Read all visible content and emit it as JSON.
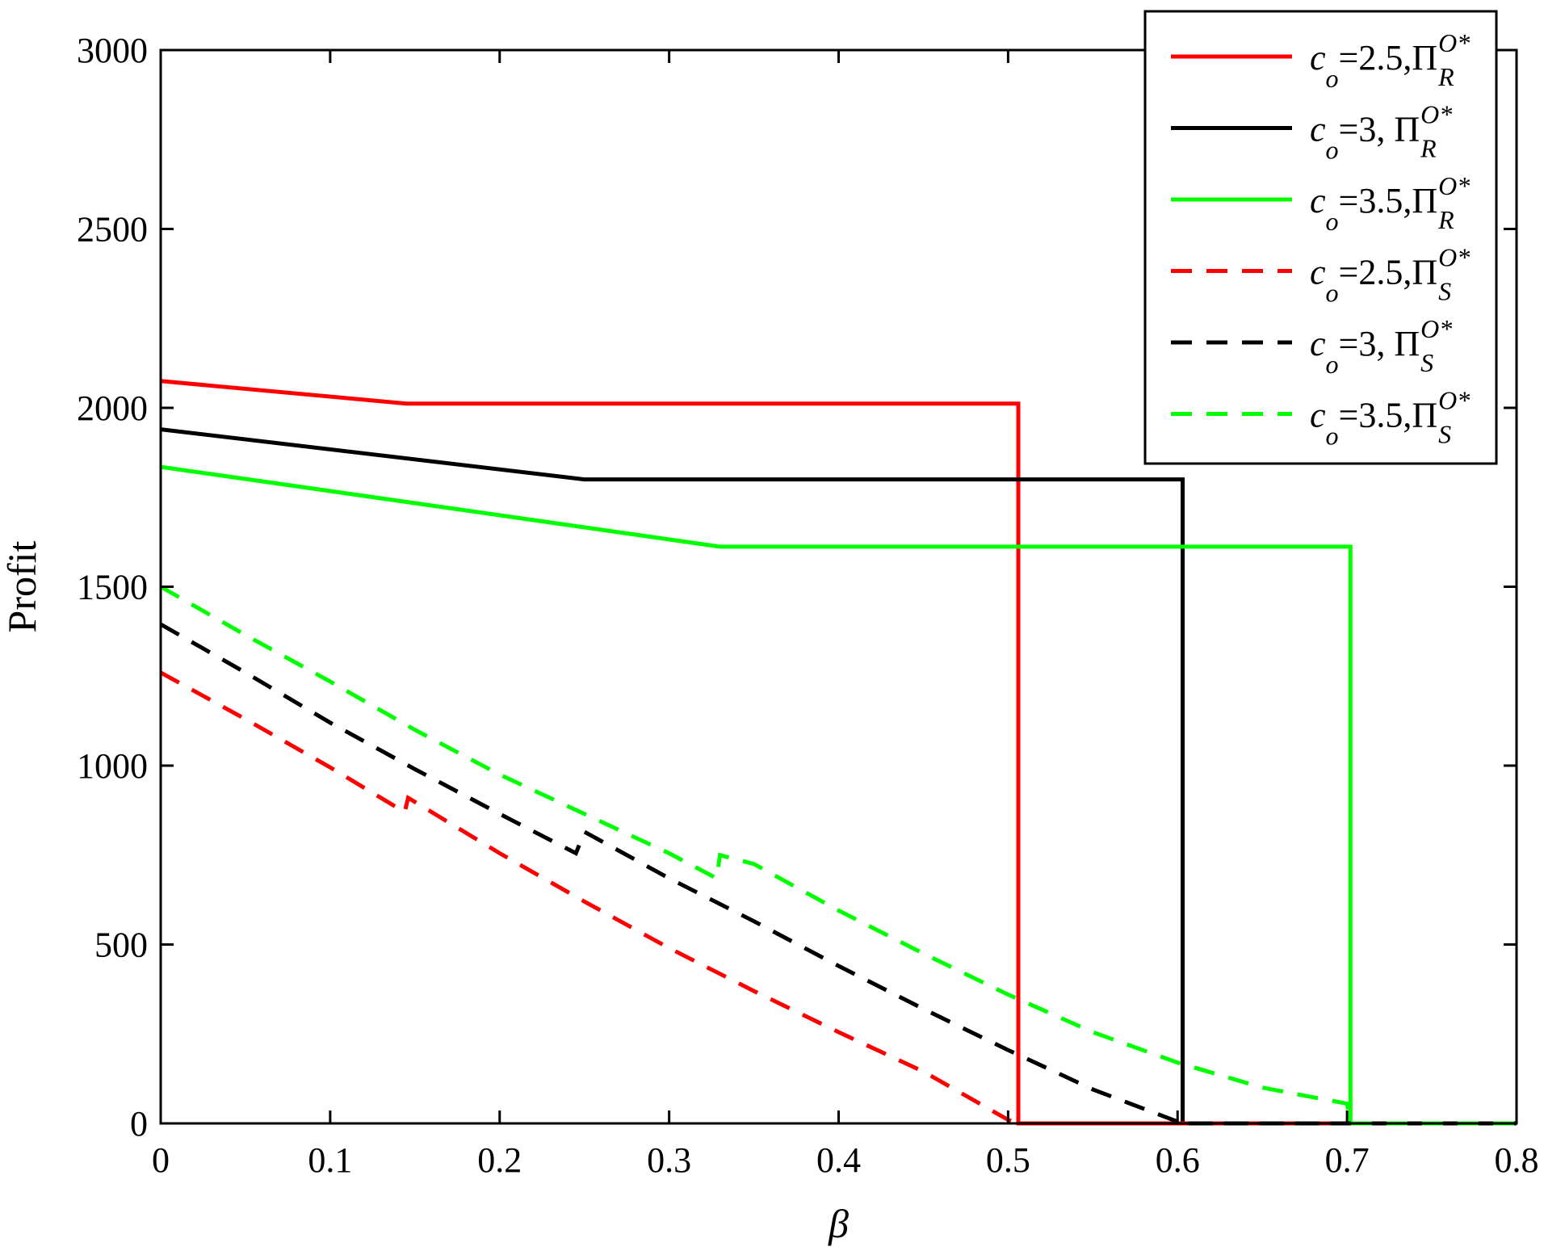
{
  "chart_data": {
    "type": "line",
    "xlabel": "β",
    "ylabel": "Profit",
    "xlim": [
      0,
      0.8
    ],
    "ylim": [
      0,
      3000
    ],
    "x_ticks": [
      "0",
      "0.1",
      "0.2",
      "0.3",
      "0.4",
      "0.5",
      "0.6",
      "0.7",
      "0.8"
    ],
    "y_ticks": [
      "0",
      "500",
      "1000",
      "1500",
      "2000",
      "2500",
      "3000"
    ],
    "grid": false,
    "legend_position": "top-right",
    "series": [
      {
        "name": "c_o=2.5,Π_R^{O*}",
        "label": {
          "c": "c",
          "o": "o",
          "rest": "=2.5,Π",
          "sub": "R",
          "sup": "O*"
        },
        "color": "#ff0000",
        "style": "solid",
        "points": [
          [
            0,
            2075
          ],
          [
            0.145,
            2012
          ],
          [
            0.506,
            2012
          ],
          [
            0.506,
            0
          ],
          [
            0.8,
            0
          ]
        ]
      },
      {
        "name": "c_o=3, Π_R^{O*}",
        "label": {
          "c": "c",
          "o": "o",
          "rest": "=3,  Π",
          "sub": "R",
          "sup": "O*"
        },
        "color": "#000000",
        "style": "solid",
        "points": [
          [
            0,
            1940
          ],
          [
            0.25,
            1800
          ],
          [
            0.603,
            1800
          ],
          [
            0.603,
            0
          ],
          [
            0.8,
            0
          ]
        ]
      },
      {
        "name": "c_o=3.5,Π_R^{O*}",
        "label": {
          "c": "c",
          "o": "o",
          "rest": "=3.5,Π",
          "sub": "R",
          "sup": "O*"
        },
        "color": "#00ff00",
        "style": "solid",
        "points": [
          [
            0,
            1835
          ],
          [
            0.33,
            1612
          ],
          [
            0.702,
            1612
          ],
          [
            0.702,
            0
          ],
          [
            0.8,
            0
          ]
        ]
      },
      {
        "name": "c_o=2.5,Π_S^{O*}",
        "label": {
          "c": "c",
          "o": "o",
          "rest": "=2.5,Π",
          "sub": "S",
          "sup": "O*"
        },
        "color": "#ff0000",
        "style": "dashed",
        "points": [
          [
            0,
            1260
          ],
          [
            0.05,
            1130
          ],
          [
            0.1,
            995
          ],
          [
            0.144,
            870
          ],
          [
            0.146,
            910
          ],
          [
            0.2,
            755
          ],
          [
            0.25,
            620
          ],
          [
            0.3,
            490
          ],
          [
            0.35,
            370
          ],
          [
            0.4,
            255
          ],
          [
            0.45,
            145
          ],
          [
            0.5,
            10
          ],
          [
            0.506,
            0
          ],
          [
            0.8,
            0
          ]
        ]
      },
      {
        "name": "c_o=3, Π_S^{O*}",
        "label": {
          "c": "c",
          "o": "o",
          "rest": "=3,  Π",
          "sub": "S",
          "sup": "O*"
        },
        "color": "#000000",
        "style": "dashed",
        "points": [
          [
            0,
            1395
          ],
          [
            0.05,
            1260
          ],
          [
            0.1,
            1120
          ],
          [
            0.15,
            990
          ],
          [
            0.2,
            865
          ],
          [
            0.245,
            755
          ],
          [
            0.25,
            815
          ],
          [
            0.3,
            685
          ],
          [
            0.35,
            565
          ],
          [
            0.4,
            440
          ],
          [
            0.45,
            320
          ],
          [
            0.5,
            205
          ],
          [
            0.55,
            95
          ],
          [
            0.6,
            5
          ],
          [
            0.603,
            0
          ],
          [
            0.8,
            0
          ]
        ]
      },
      {
        "name": "c_o=3.5,Π_S^{O*}",
        "label": {
          "c": "c",
          "o": "o",
          "rest": "=3.5,Π",
          "sub": "S",
          "sup": "O*"
        },
        "color": "#00ff00",
        "style": "dashed",
        "points": [
          [
            0,
            1500
          ],
          [
            0.05,
            1365
          ],
          [
            0.1,
            1235
          ],
          [
            0.15,
            1100
          ],
          [
            0.2,
            975
          ],
          [
            0.25,
            865
          ],
          [
            0.3,
            755
          ],
          [
            0.328,
            685
          ],
          [
            0.33,
            750
          ],
          [
            0.35,
            725
          ],
          [
            0.4,
            595
          ],
          [
            0.45,
            475
          ],
          [
            0.5,
            360
          ],
          [
            0.55,
            255
          ],
          [
            0.6,
            170
          ],
          [
            0.65,
            100
          ],
          [
            0.7,
            55
          ],
          [
            0.702,
            0
          ],
          [
            0.8,
            0
          ]
        ]
      }
    ]
  }
}
